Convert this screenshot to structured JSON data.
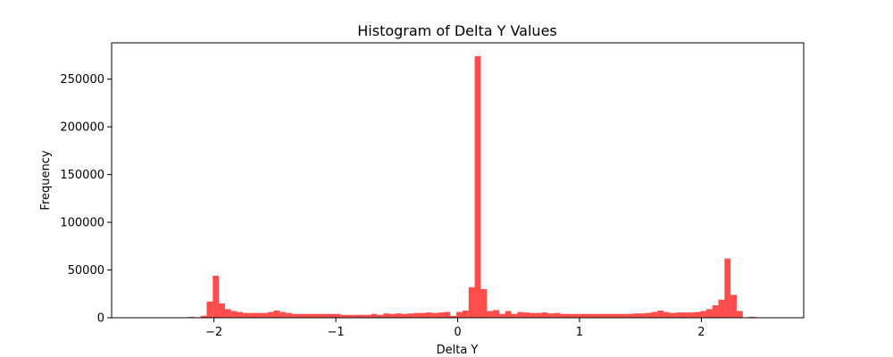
{
  "chart_data": {
    "type": "bar",
    "title": "Histogram of Delta Y Values",
    "xlabel": "Delta Y",
    "ylabel": "Frequency",
    "xlim": [
      -2.84,
      2.84
    ],
    "ylim": [
      0,
      288000
    ],
    "xticks": [
      {
        "value": -2,
        "label": "−2"
      },
      {
        "value": -1,
        "label": "−1"
      },
      {
        "value": 0,
        "label": "0"
      },
      {
        "value": 1,
        "label": "1"
      },
      {
        "value": 2,
        "label": "2"
      }
    ],
    "yticks": [
      {
        "value": 0,
        "label": "0"
      },
      {
        "value": 50000,
        "label": "50000"
      },
      {
        "value": 100000,
        "label": "100000"
      },
      {
        "value": 150000,
        "label": "150000"
      },
      {
        "value": 200000,
        "label": "200000"
      },
      {
        "value": 250000,
        "label": "250000"
      }
    ],
    "bar_color": "#ff0000",
    "bar_alpha": 0.7,
    "grid": false,
    "bins": {
      "start": -2.56,
      "width": 0.05,
      "values": [
        0,
        0,
        0,
        0,
        0,
        0,
        0,
        800,
        0,
        2000,
        17000,
        44000,
        15000,
        9000,
        7000,
        6000,
        5000,
        5000,
        5000,
        5000,
        6000,
        7500,
        6000,
        5000,
        4000,
        4000,
        4000,
        4000,
        4000,
        4000,
        4000,
        4000,
        3000,
        3000,
        3000,
        3000,
        3000,
        4000,
        3000,
        4500,
        4000,
        4500,
        4000,
        4500,
        5000,
        5000,
        5500,
        5000,
        5500,
        6000,
        2000,
        6000,
        7500,
        32000,
        274000,
        30000,
        7000,
        8000,
        4000,
        7000,
        4000,
        6000,
        5500,
        5000,
        5000,
        5500,
        4500,
        5000,
        4000,
        4000,
        4000,
        4000,
        4000,
        4000,
        4000,
        4000,
        4000,
        4000,
        4000,
        4000,
        4500,
        4500,
        5000,
        6000,
        7500,
        6000,
        5000,
        5500,
        5500,
        5500,
        6000,
        7000,
        9000,
        13000,
        19000,
        62000,
        24000,
        7000,
        0,
        1000,
        0,
        0,
        0,
        0,
        0,
        0
      ]
    }
  }
}
